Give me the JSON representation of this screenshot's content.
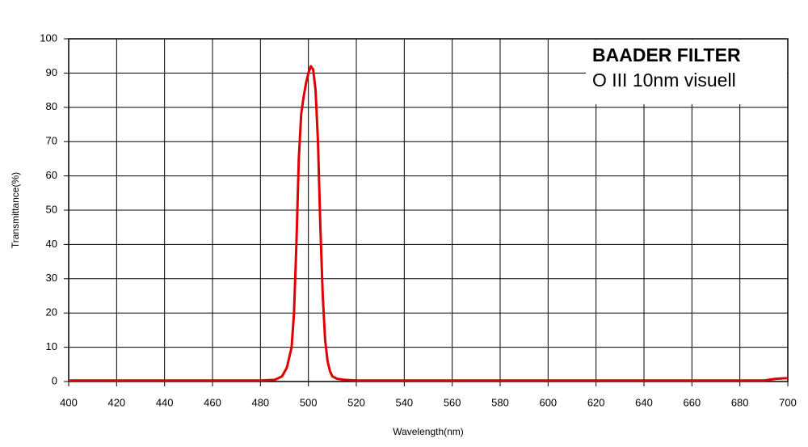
{
  "chart_data": {
    "type": "line",
    "title": "BAADER FILTER",
    "subtitle": "O III 10nm visuell",
    "x_label": "Wavelength(nm)",
    "y_label": "Transmittance(%)",
    "x": [
      400,
      480,
      486,
      489,
      491,
      493,
      494,
      495,
      496,
      497,
      498,
      499,
      500,
      501,
      502,
      503,
      504,
      505,
      506,
      507,
      508,
      509,
      510,
      512,
      515,
      520,
      600,
      690,
      695,
      700
    ],
    "series": [
      {
        "name": "O III 10nm visuell",
        "color": "#e00000",
        "values": [
          0.3,
          0.3,
          0.5,
          1.5,
          4,
          10,
          20,
          40,
          65,
          78,
          83,
          87,
          90,
          92,
          91,
          85,
          70,
          45,
          25,
          12,
          6,
          3,
          1.5,
          0.8,
          0.5,
          0.3,
          0.3,
          0.3,
          0.8,
          1
        ]
      }
    ],
    "xlim": [
      400,
      700
    ],
    "ylim": [
      0,
      100
    ],
    "xticks": [
      400,
      420,
      440,
      460,
      480,
      500,
      520,
      540,
      560,
      580,
      600,
      620,
      640,
      660,
      680,
      700
    ],
    "yticks": [
      0,
      10,
      20,
      30,
      40,
      50,
      60,
      70,
      80,
      90,
      100
    ],
    "grid": true
  }
}
